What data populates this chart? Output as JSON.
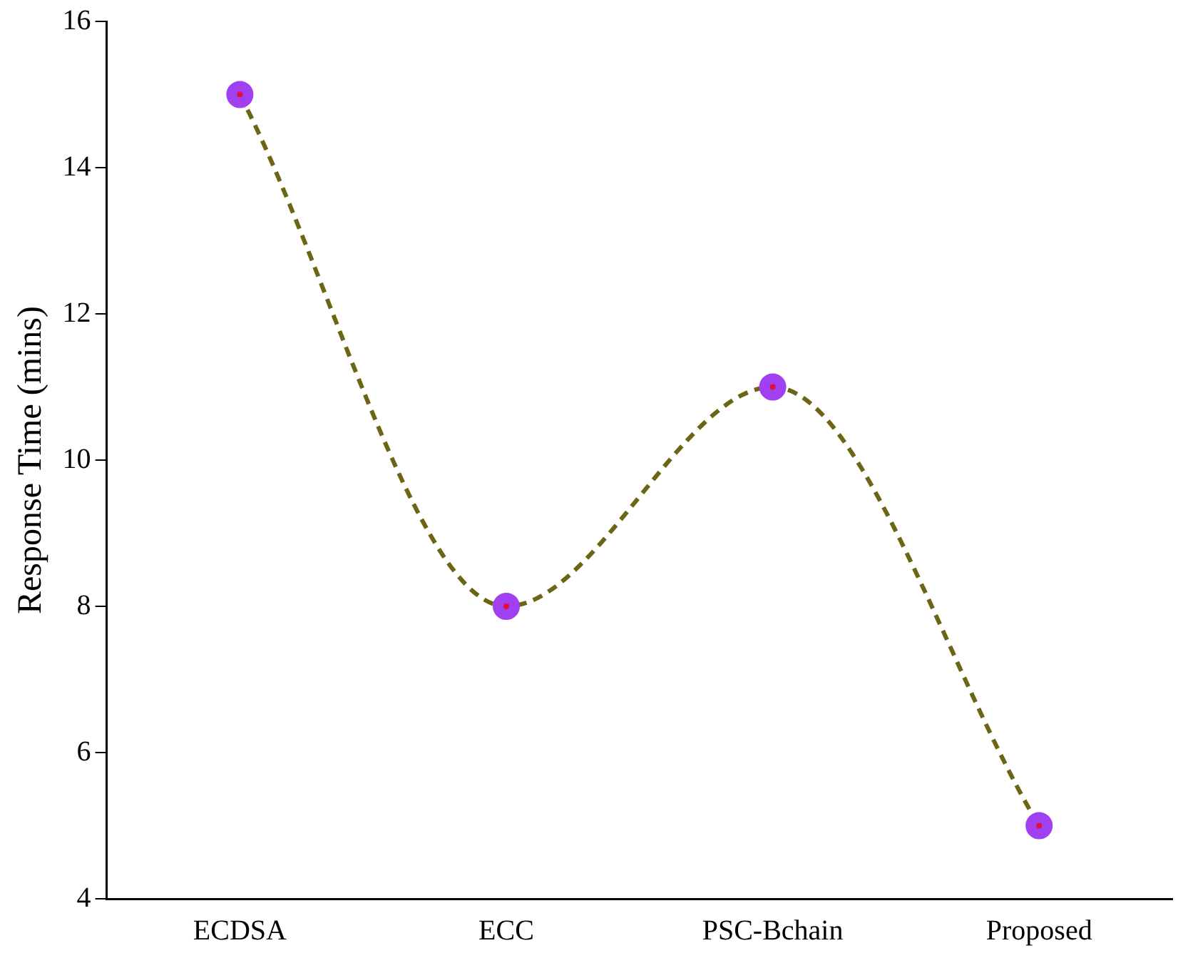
{
  "chart_data": {
    "type": "line",
    "ylabel": "Response Time (mins)",
    "categories": [
      "ECDSA",
      "ECC",
      "PSC-Bchain",
      "Proposed"
    ],
    "series": [
      {
        "color": "#6b6515",
        "colors": [
          "#a040f0",
          "#a040f0",
          "#a040f0",
          "#a040f0"
        ],
        "values": [
          15,
          8,
          11,
          5
        ]
      }
    ],
    "ylim": [
      4,
      16
    ],
    "yticks": [
      4,
      6,
      8,
      10,
      12,
      14,
      16
    ],
    "grid": false,
    "legend": false,
    "marker": "circle",
    "line_style": "dashed"
  }
}
